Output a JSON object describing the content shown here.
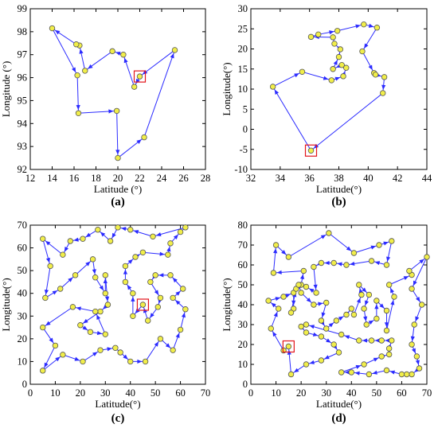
{
  "chart_data": [
    {
      "type": "scatter",
      "panel_label": "(a)",
      "xlabel": "Latitude (°)",
      "ylabel": "Longitude (°)",
      "xlim": [
        12,
        28
      ],
      "ylim": [
        92,
        99
      ],
      "xticks": [
        "12",
        "14",
        "16",
        "18",
        "20",
        "22",
        "24",
        "26",
        "28"
      ],
      "yticks": [
        "92",
        "93",
        "94",
        "95",
        "96",
        "97",
        "98",
        "99"
      ],
      "route": [
        [
          22.0,
          96.05
        ],
        [
          21.5,
          95.6
        ],
        [
          20.5,
          97.0
        ],
        [
          19.5,
          97.15
        ],
        [
          17.0,
          96.3
        ],
        [
          16.5,
          97.4
        ],
        [
          16.2,
          97.45
        ],
        [
          14.0,
          98.15
        ],
        [
          16.3,
          96.1
        ],
        [
          16.4,
          94.45
        ],
        [
          19.9,
          94.55
        ],
        [
          20.0,
          92.5
        ],
        [
          22.4,
          93.4
        ],
        [
          25.2,
          97.2
        ]
      ],
      "start_point": [
        22.0,
        96.05
      ],
      "closed": true
    },
    {
      "type": "scatter",
      "panel_label": "(b)",
      "xlabel": "Latitude(°)",
      "ylabel": "Longitude(°)",
      "xlim": [
        32,
        44
      ],
      "ylim": [
        -10,
        30
      ],
      "xticks": [
        "32",
        "34",
        "36",
        "38",
        "40",
        "42",
        "44"
      ],
      "yticks": [
        "-10",
        "-5",
        "0",
        "5",
        "10",
        "15",
        "20",
        "25",
        "30"
      ],
      "route": [
        [
          36.1,
          -5.3
        ],
        [
          33.5,
          10.6
        ],
        [
          35.5,
          14.3
        ],
        [
          37.5,
          12.2
        ],
        [
          38.3,
          13.2
        ],
        [
          38.5,
          15.3
        ],
        [
          38.2,
          16.0
        ],
        [
          37.6,
          15.0
        ],
        [
          38.0,
          18.0
        ],
        [
          38.1,
          19.9
        ],
        [
          37.7,
          21.3
        ],
        [
          37.6,
          22.9
        ],
        [
          36.1,
          23.0
        ],
        [
          36.6,
          23.6
        ],
        [
          37.9,
          24.5
        ],
        [
          39.7,
          26.1
        ],
        [
          40.6,
          25.3
        ],
        [
          39.6,
          19.4
        ],
        [
          40.4,
          14.0
        ],
        [
          40.5,
          13.6
        ],
        [
          41.1,
          13.0
        ],
        [
          41.0,
          9.0
        ]
      ],
      "start_point": [
        36.1,
        -5.3
      ],
      "closed": true
    },
    {
      "type": "scatter",
      "panel_label": "(c)",
      "xlabel": "Latitude(°)",
      "ylabel": "Longitude(°)",
      "xlim": [
        0,
        70
      ],
      "ylim": [
        0,
        70
      ],
      "xticks": [
        "0",
        "10",
        "20",
        "30",
        "40",
        "50",
        "60",
        "70"
      ],
      "yticks": [
        "0",
        "10",
        "20",
        "30",
        "40",
        "50",
        "60",
        "70"
      ],
      "route": [
        [
          45,
          35
        ],
        [
          41,
          30
        ],
        [
          41,
          40
        ],
        [
          38,
          45
        ],
        [
          38,
          52
        ],
        [
          42,
          56
        ],
        [
          45,
          58
        ],
        [
          55,
          57
        ],
        [
          56,
          62
        ],
        [
          60,
          67
        ],
        [
          62,
          69
        ],
        [
          49,
          65
        ],
        [
          40,
          68
        ],
        [
          35,
          69
        ],
        [
          32,
          63
        ],
        [
          27,
          68
        ],
        [
          21,
          64
        ],
        [
          16,
          63
        ],
        [
          13,
          57
        ],
        [
          5,
          64
        ],
        [
          8,
          52
        ],
        [
          6,
          38
        ],
        [
          12,
          42
        ],
        [
          18,
          48
        ],
        [
          25,
          55
        ],
        [
          26,
          47
        ],
        [
          30,
          40
        ],
        [
          30,
          48
        ],
        [
          31,
          35
        ],
        [
          28,
          32
        ],
        [
          20,
          26
        ],
        [
          24,
          23
        ],
        [
          30,
          22
        ],
        [
          26,
          32
        ],
        [
          17,
          34
        ],
        [
          5,
          25
        ],
        [
          10,
          17
        ],
        [
          5,
          6
        ],
        [
          13,
          13
        ],
        [
          21,
          10
        ],
        [
          28,
          15
        ],
        [
          34,
          16
        ],
        [
          36,
          14
        ],
        [
          40,
          10
        ],
        [
          46,
          10
        ],
        [
          52,
          20
        ],
        [
          57,
          15
        ],
        [
          60,
          24
        ],
        [
          62,
          33
        ],
        [
          57,
          38
        ],
        [
          61,
          42
        ],
        [
          56,
          48
        ],
        [
          50,
          48
        ],
        [
          48,
          45
        ],
        [
          52,
          38
        ],
        [
          51,
          34
        ],
        [
          47,
          28
        ]
      ],
      "start_point": [
        45,
        35
      ],
      "closed": true
    },
    {
      "type": "scatter",
      "panel_label": "(d)",
      "xlabel": "Latitude(°)",
      "ylabel": "Longitude(°)",
      "xlim": [
        0,
        70
      ],
      "ylim": [
        0,
        80
      ],
      "xticks": [
        "0",
        "10",
        "20",
        "30",
        "40",
        "50",
        "60",
        "70"
      ],
      "yticks": [
        "0",
        "10",
        "20",
        "30",
        "40",
        "50",
        "60",
        "70",
        "80"
      ],
      "route": [
        [
          15,
          19
        ],
        [
          13,
          17
        ],
        [
          8,
          28
        ],
        [
          11,
          38
        ],
        [
          7,
          42
        ],
        [
          13,
          44
        ],
        [
          17,
          46
        ],
        [
          17,
          38
        ],
        [
          16,
          36
        ],
        [
          18,
          48
        ],
        [
          20,
          50
        ],
        [
          21,
          57
        ],
        [
          9,
          56
        ],
        [
          10,
          70
        ],
        [
          15,
          64
        ],
        [
          31,
          76
        ],
        [
          41,
          66
        ],
        [
          51,
          70
        ],
        [
          56,
          72
        ],
        [
          54,
          60
        ],
        [
          48,
          62
        ],
        [
          38,
          60
        ],
        [
          33,
          61
        ],
        [
          28,
          61
        ],
        [
          25,
          59
        ],
        [
          26,
          46
        ],
        [
          22,
          49
        ],
        [
          19,
          50
        ],
        [
          20,
          46
        ],
        [
          25,
          40
        ],
        [
          30,
          41
        ],
        [
          28,
          32
        ],
        [
          30,
          28
        ],
        [
          34,
          32
        ],
        [
          38,
          35
        ],
        [
          40,
          38
        ],
        [
          41,
          35
        ],
        [
          44,
          45
        ],
        [
          43,
          50
        ],
        [
          47,
          45
        ],
        [
          45,
          38
        ],
        [
          46,
          30
        ],
        [
          50,
          33
        ],
        [
          50,
          42
        ],
        [
          54,
          37
        ],
        [
          54,
          27
        ],
        [
          57,
          44
        ],
        [
          55,
          50
        ],
        [
          64,
          55
        ],
        [
          63,
          57
        ],
        [
          70,
          64
        ],
        [
          64,
          48
        ],
        [
          68,
          40
        ],
        [
          65,
          30
        ],
        [
          64,
          20
        ],
        [
          66,
          14
        ],
        [
          67,
          8
        ],
        [
          64,
          5
        ],
        [
          62,
          5
        ],
        [
          60,
          5
        ],
        [
          54,
          7
        ],
        [
          47,
          5
        ],
        [
          40,
          6
        ],
        [
          36,
          6
        ],
        [
          45,
          10
        ],
        [
          52,
          14
        ],
        [
          55,
          15
        ],
        [
          55,
          18
        ],
        [
          56,
          22
        ],
        [
          52,
          22
        ],
        [
          48,
          22
        ],
        [
          43,
          22
        ],
        [
          36,
          25
        ],
        [
          22,
          30
        ],
        [
          20,
          29
        ],
        [
          22,
          26
        ],
        [
          28,
          24
        ],
        [
          33,
          20
        ],
        [
          35,
          16
        ],
        [
          28,
          12
        ],
        [
          22,
          10
        ],
        [
          16,
          5
        ]
      ],
      "start_point": [
        15,
        19
      ],
      "closed": true
    }
  ]
}
